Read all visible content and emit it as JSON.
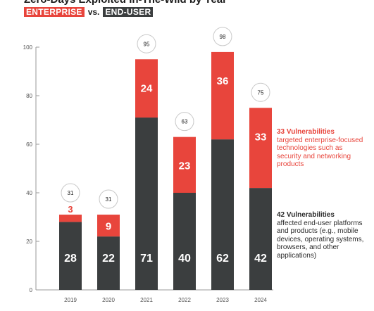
{
  "colors": {
    "enterprise": "#e8453c",
    "enduser": "#3b3e3f",
    "axis": "#9a9a9a",
    "text": "#555555"
  },
  "title": "Zero-Days Exploited In-The-Wild by Year",
  "legend": {
    "enterprise": "ENTERPRISE",
    "vs": "vs.",
    "enduser": "END-USER"
  },
  "annotations": {
    "enterprise": {
      "head": "33 Vulnerabilities",
      "body": "targeted enterprise-focused technologies such as security and networking products"
    },
    "enduser": {
      "head": "42 Vulnerabilities",
      "body": "affected end-user platforms and products (e.g., mobile devices, operating systems, browsers, and other applications)"
    }
  },
  "chart_data": {
    "type": "bar",
    "stacked": true,
    "categories": [
      "2019",
      "2020",
      "2021",
      "2022",
      "2023",
      "2024"
    ],
    "series": [
      {
        "name": "END-USER",
        "values": [
          28,
          22,
          71,
          40,
          62,
          42
        ]
      },
      {
        "name": "ENTERPRISE",
        "values": [
          3,
          9,
          24,
          23,
          36,
          33
        ]
      }
    ],
    "totals": [
      31,
      31,
      95,
      63,
      98,
      75
    ],
    "yticks": [
      0,
      20,
      40,
      60,
      80,
      100
    ],
    "ylim": [
      0,
      100
    ],
    "grid": false
  }
}
